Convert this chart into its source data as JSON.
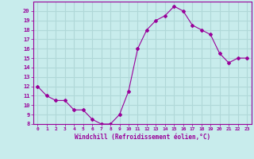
{
  "x": [
    0,
    1,
    2,
    3,
    4,
    5,
    6,
    7,
    8,
    9,
    10,
    11,
    12,
    13,
    14,
    15,
    16,
    17,
    18,
    19,
    20,
    21,
    22,
    23
  ],
  "y": [
    12,
    11,
    10.5,
    10.5,
    9.5,
    9.5,
    8.5,
    8,
    8,
    9,
    11.5,
    16,
    18,
    19,
    19.5,
    20.5,
    20,
    18.5,
    18,
    17.5,
    15.5,
    14.5,
    15,
    15
  ],
  "line_color": "#990099",
  "marker": "D",
  "marker_size": 2,
  "background_color": "#c8ecec",
  "grid_color": "#b0d8d8",
  "xlabel": "Windchill (Refroidissement éolien,°C)",
  "xlabel_color": "#990099",
  "tick_color": "#990099",
  "spine_color": "#990099",
  "ylim": [
    8,
    21
  ],
  "xlim": [
    -0.5,
    23.5
  ],
  "yticks": [
    8,
    9,
    10,
    11,
    12,
    13,
    14,
    15,
    16,
    17,
    18,
    19,
    20
  ],
  "xticks": [
    0,
    1,
    2,
    3,
    4,
    5,
    6,
    7,
    8,
    9,
    10,
    11,
    12,
    13,
    14,
    15,
    16,
    17,
    18,
    19,
    20,
    21,
    22,
    23
  ]
}
